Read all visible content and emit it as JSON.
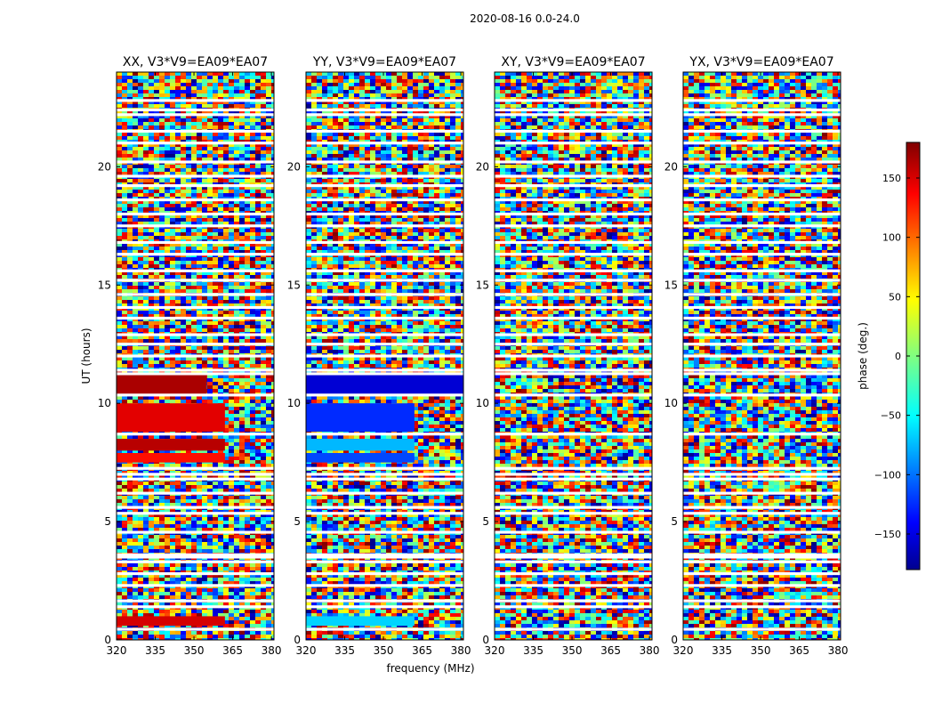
{
  "figure": {
    "suptitle": "2020-08-16 0.0-24.0",
    "xlabel": "frequency (MHz)",
    "ylabel": "UT (hours)"
  },
  "chart_data": {
    "type": "heatmap",
    "title": "2020-08-16 0.0-24.0",
    "xlabel": "frequency (MHz)",
    "ylabel": "UT (hours)",
    "xlim": [
      320,
      381
    ],
    "ylim": [
      0,
      24
    ],
    "xticks": [
      320,
      335,
      350,
      365,
      380
    ],
    "yticks": [
      0,
      5,
      10,
      15,
      20
    ],
    "panels": [
      {
        "title": "XX, V3*V9=EA09*EA07",
        "coherent_bands": [
          {
            "t0": 0.6,
            "t1": 1.0,
            "f1": 362,
            "phase": 150
          },
          {
            "t0": 7.5,
            "t1": 7.9,
            "f1": 362,
            "phase": 130
          },
          {
            "t0": 8.0,
            "t1": 8.5,
            "f1": 362,
            "phase": 160
          },
          {
            "t0": 8.8,
            "t1": 10.0,
            "f1": 362,
            "phase": 145
          },
          {
            "t0": 10.3,
            "t1": 11.2,
            "f1": 355,
            "phase": 165
          }
        ]
      },
      {
        "title": "YY, V3*V9=EA09*EA07",
        "coherent_bands": [
          {
            "t0": 0.6,
            "t1": 1.0,
            "f1": 362,
            "phase": -60
          },
          {
            "t0": 7.5,
            "t1": 7.9,
            "f1": 362,
            "phase": -110
          },
          {
            "t0": 8.0,
            "t1": 8.5,
            "f1": 362,
            "phase": -70
          },
          {
            "t0": 8.8,
            "t1": 10.0,
            "f1": 362,
            "phase": -120
          },
          {
            "t0": 10.3,
            "t1": 11.2,
            "f1": 381,
            "phase": -150
          }
        ]
      },
      {
        "title": "XY, V3*V9=EA09*EA07",
        "coherent_bands": []
      },
      {
        "title": "YX, V3*V9=EA09*EA07",
        "coherent_bands": []
      }
    ],
    "gaps_hours": [
      0.45,
      1.4,
      1.65,
      2.3,
      2.8,
      3.3,
      3.5,
      3.6,
      4.55,
      5.35,
      5.6,
      6.2,
      6.8,
      7.0,
      7.25,
      8.7,
      10.35,
      11.25,
      11.4,
      12.0,
      12.5,
      12.9,
      13.6,
      14.05,
      14.6,
      15.2,
      15.6,
      16.3,
      16.8,
      17.5,
      18.0,
      18.6,
      19.2,
      19.6,
      20.2,
      21.0,
      21.5,
      22.2,
      22.4,
      22.8
    ],
    "colorbar": {
      "label": "phase (deg.)",
      "range": [
        -180,
        180
      ],
      "ticks": [
        150,
        100,
        50,
        0,
        -50,
        -100,
        -150
      ],
      "tick_labels": [
        "150",
        "100",
        "50",
        "0",
        "−50",
        "−100",
        "−150"
      ],
      "colormap": "jet"
    }
  }
}
